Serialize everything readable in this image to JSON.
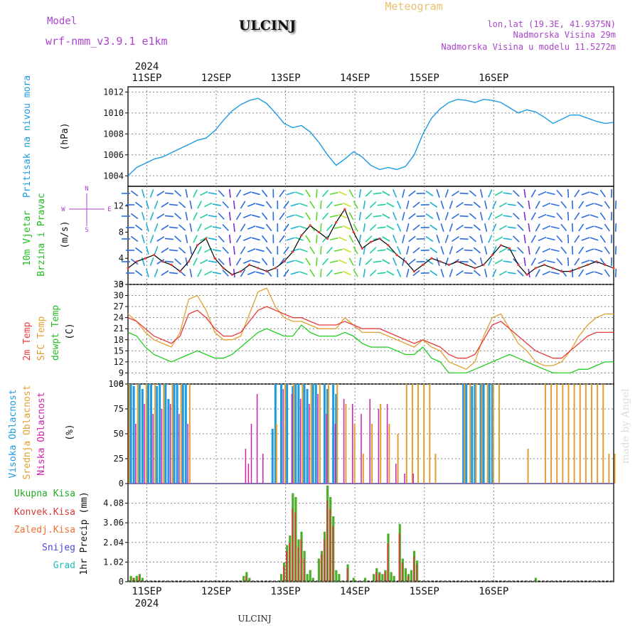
{
  "header": {
    "model_label": "Model",
    "model_name": "wrf-nmm_v3.9.1  e1km",
    "station": "ULCINJ",
    "product": "Meteogram",
    "lonlat": "lon,lat (19.3E, 41.9375N)",
    "elevation": "Nadmorska Visina 29m",
    "model_elevation": "Nadmorska Visina u modelu 11.5272m",
    "footer_station": "ULCINJ",
    "watermark": "made by Angel"
  },
  "colors": {
    "pressure": "#1e9be0",
    "temp2m": "#e83c3c",
    "sfc_temp": "#e0a030",
    "dewpoint": "#22cc22",
    "high_cloud": "#1e9be0",
    "mid_cloud": "#e0a030",
    "low_cloud": "#cc22aa",
    "total_precip": "#4caf2a",
    "conv_precip": "#d83a3a",
    "snow": "#4a4ad8",
    "graupel": "#20c0c0",
    "model_label": "#aa44cc",
    "product_title": "#e8c070"
  },
  "chart_data": [
    {
      "type": "line",
      "panel": "pressure",
      "ylabel_lines": [
        "Pritisak na nivou mora",
        "(hPa)"
      ],
      "ylim": [
        1003,
        1012.5
      ],
      "yticks": [
        1004,
        1006,
        1008,
        1010,
        1012
      ],
      "x_days": [
        "11SEP",
        "12SEP",
        "13SEP",
        "14SEP",
        "15SEP",
        "16SEP"
      ],
      "x_year": "2024",
      "series": [
        {
          "x": [
            0,
            3,
            6,
            9,
            12,
            15,
            18,
            21,
            24,
            27,
            30,
            33,
            36,
            39,
            42,
            45,
            48,
            51,
            54,
            57,
            60,
            63,
            66,
            69,
            72,
            75,
            78,
            81,
            84,
            87,
            90,
            93,
            96,
            99,
            102,
            105,
            108,
            111,
            114,
            117,
            120,
            123,
            126,
            129,
            132,
            135,
            138,
            141,
            144,
            147,
            150,
            153,
            156,
            159,
            162,
            165,
            168
          ],
          "y": [
            1004.0,
            1004.8,
            1005.2,
            1005.6,
            1005.8,
            1006.2,
            1006.6,
            1007.0,
            1007.4,
            1007.6,
            1008.3,
            1009.3,
            1010.2,
            1010.8,
            1011.2,
            1011.4,
            1010.9,
            1010.0,
            1009.0,
            1008.6,
            1008.8,
            1008.2,
            1007.2,
            1006.0,
            1005.0,
            1005.6,
            1006.3,
            1005.8,
            1005.0,
            1004.6,
            1004.8,
            1004.6,
            1004.9,
            1006.0,
            1008.0,
            1009.5,
            1010.4,
            1011.0,
            1011.3,
            1011.2,
            1011.0,
            1011.3,
            1011.2,
            1011.0,
            1010.5,
            1010.0,
            1010.3,
            1010.1,
            1009.6,
            1009.0,
            1009.4,
            1009.8,
            1009.8,
            1009.5,
            1009.2,
            1009.0,
            1009.1
          ]
        }
      ]
    },
    {
      "type": "line",
      "panel": "wind",
      "ylabel_lines": [
        "10m Vjetar",
        "Brzina i Pravac",
        "(m/s)"
      ],
      "ylim": [
        0,
        15
      ],
      "yticks": [
        0,
        4,
        8,
        12
      ],
      "compass": [
        "N",
        "E",
        "W",
        "S"
      ],
      "series": [
        {
          "name": "speed",
          "x": [
            0,
            3,
            6,
            9,
            12,
            15,
            18,
            21,
            24,
            27,
            30,
            33,
            36,
            39,
            42,
            45,
            48,
            51,
            54,
            57,
            60,
            63,
            66,
            69,
            72,
            75,
            78,
            81,
            84,
            87,
            90,
            93,
            96,
            99,
            102,
            105,
            108,
            111,
            114,
            117,
            120,
            123,
            126,
            129,
            132,
            135,
            138,
            141,
            144,
            147,
            150,
            153,
            156,
            159,
            162,
            165,
            168
          ],
          "y": [
            2.5,
            3.5,
            4.0,
            4.5,
            3.5,
            3.0,
            2.0,
            3.5,
            6.0,
            7.0,
            4.0,
            2.5,
            1.5,
            2.0,
            3.0,
            2.5,
            2.0,
            2.5,
            3.5,
            5.0,
            7.5,
            9.0,
            8.0,
            7.0,
            9.5,
            11.5,
            8.0,
            5.5,
            6.5,
            7.0,
            6.0,
            4.5,
            3.5,
            2.0,
            3.0,
            4.0,
            3.5,
            3.0,
            3.5,
            3.0,
            2.5,
            3.0,
            4.5,
            6.0,
            5.5,
            3.0,
            1.5,
            2.5,
            3.0,
            2.5,
            2.0,
            2.0,
            2.5,
            3.0,
            3.5,
            3.0,
            2.5
          ]
        }
      ]
    },
    {
      "type": "line",
      "panel": "temperature",
      "ylabel_lines": [
        "2m Temp",
        "SFC Temp",
        "dewpt Temp",
        "(C)"
      ],
      "ylim": [
        6,
        33
      ],
      "yticks": [
        6,
        9,
        12,
        15,
        18,
        21,
        24,
        27,
        30,
        33
      ],
      "series": [
        {
          "name": "2m Temp",
          "x": [
            0,
            3,
            6,
            9,
            12,
            15,
            18,
            21,
            24,
            27,
            30,
            33,
            36,
            39,
            42,
            45,
            48,
            51,
            54,
            57,
            60,
            63,
            66,
            69,
            72,
            75,
            78,
            81,
            84,
            87,
            90,
            93,
            96,
            99,
            102,
            105,
            108,
            111,
            114,
            117,
            120,
            123,
            126,
            129,
            132,
            135,
            138,
            141,
            144,
            147,
            150,
            153,
            156,
            159,
            162,
            165,
            168
          ],
          "y": [
            24,
            23,
            21,
            19,
            18,
            17,
            19,
            25,
            26,
            24,
            21,
            19,
            19,
            20,
            23,
            26,
            27,
            26,
            25,
            24,
            24,
            23,
            22,
            22,
            22,
            23,
            22,
            21,
            21,
            21,
            20,
            19,
            18,
            17,
            18,
            17,
            16,
            14,
            13,
            13,
            14,
            18,
            22,
            23,
            21,
            19,
            17,
            15,
            14,
            13,
            13,
            15,
            17,
            19,
            20,
            20,
            20
          ]
        },
        {
          "name": "SFC Temp",
          "x": [
            0,
            3,
            6,
            9,
            12,
            15,
            18,
            21,
            24,
            27,
            30,
            33,
            36,
            39,
            42,
            45,
            48,
            51,
            54,
            57,
            60,
            63,
            66,
            69,
            72,
            75,
            78,
            81,
            84,
            87,
            90,
            93,
            96,
            99,
            102,
            105,
            108,
            111,
            114,
            117,
            120,
            123,
            126,
            129,
            132,
            135,
            138,
            141,
            144,
            147,
            150,
            153,
            156,
            159,
            162,
            165,
            168
          ],
          "y": [
            25,
            23,
            20,
            18,
            17,
            16,
            20,
            29,
            30,
            26,
            20,
            18,
            18,
            19,
            25,
            31,
            32,
            27,
            24,
            23,
            23,
            22,
            21,
            21,
            21,
            24,
            22,
            20,
            20,
            20,
            19,
            18,
            17,
            16,
            18,
            16,
            15,
            12,
            11,
            10,
            12,
            19,
            24,
            25,
            21,
            17,
            15,
            12,
            11,
            11,
            12,
            15,
            19,
            22,
            24,
            25,
            25
          ]
        },
        {
          "name": "dewpt Temp",
          "x": [
            0,
            3,
            6,
            9,
            12,
            15,
            18,
            21,
            24,
            27,
            30,
            33,
            36,
            39,
            42,
            45,
            48,
            51,
            54,
            57,
            60,
            63,
            66,
            69,
            72,
            75,
            78,
            81,
            84,
            87,
            90,
            93,
            96,
            99,
            102,
            105,
            108,
            111,
            114,
            117,
            120,
            123,
            126,
            129,
            132,
            135,
            138,
            141,
            144,
            147,
            150,
            153,
            156,
            159,
            162,
            165,
            168
          ],
          "y": [
            20,
            19,
            16,
            14,
            13,
            12,
            13,
            14,
            15,
            14,
            13,
            13,
            14,
            16,
            18,
            20,
            21,
            20,
            19,
            19,
            22,
            20,
            19,
            19,
            19,
            20,
            19,
            17,
            16,
            16,
            16,
            15,
            14,
            14,
            16,
            13,
            12,
            9,
            9,
            9,
            10,
            11,
            12,
            13,
            14,
            13,
            12,
            11,
            10,
            9,
            9,
            9,
            10,
            10,
            11,
            12,
            12
          ]
        }
      ]
    },
    {
      "type": "bar",
      "panel": "cloud",
      "ylabel_lines": [
        "Visoka Oblacnost",
        "Srednja Oblacnost",
        "Niska Oblacnost",
        "(%)"
      ],
      "ylim": [
        0,
        100
      ],
      "yticks": [
        0,
        25,
        50,
        75,
        100
      ],
      "series": [
        {
          "name": "Visoka Oblacnost",
          "x": [
            1,
            2,
            4,
            5,
            7,
            8,
            10,
            11,
            13,
            14,
            16,
            17,
            19,
            20,
            50,
            51,
            53,
            55,
            57,
            58,
            59,
            61,
            62,
            64,
            65,
            68,
            69,
            71,
            72,
            116,
            117,
            119,
            120,
            122,
            123,
            125,
            126
          ],
          "y": [
            100,
            98,
            100,
            95,
            100,
            100,
            98,
            100,
            100,
            85,
            100,
            100,
            100,
            100,
            55,
            100,
            100,
            100,
            98,
            100,
            100,
            100,
            95,
            100,
            100,
            100,
            95,
            100,
            90,
            100,
            100,
            98,
            100,
            100,
            100,
            100,
            100
          ]
        },
        {
          "name": "Srednja Oblacnost",
          "x": [
            0,
            3,
            6,
            9,
            12,
            15,
            18,
            21,
            51,
            54,
            57,
            60,
            63,
            66,
            69,
            72,
            75,
            78,
            81,
            84,
            87,
            90,
            93,
            96,
            98,
            100,
            102,
            104,
            106,
            108,
            110,
            112,
            114,
            116,
            118,
            120,
            122,
            124,
            126,
            128,
            130,
            132,
            134,
            136,
            138,
            140,
            142,
            144,
            146,
            148,
            150,
            152,
            154,
            156,
            158,
            160,
            162,
            164,
            166,
            168
          ],
          "y": [
            100,
            100,
            100,
            100,
            100,
            100,
            100,
            100,
            60,
            100,
            100,
            100,
            100,
            100,
            100,
            100,
            80,
            60,
            30,
            60,
            80,
            60,
            50,
            100,
            100,
            100,
            100,
            100,
            30,
            0,
            0,
            0,
            0,
            100,
            100,
            100,
            100,
            100,
            100,
            100,
            0,
            0,
            0,
            0,
            35,
            0,
            0,
            100,
            100,
            100,
            100,
            100,
            100,
            100,
            100,
            100,
            100,
            100,
            30,
            30
          ]
        },
        {
          "name": "Niska Oblacnost",
          "x": [
            2,
            5,
            8,
            11,
            14,
            17,
            20,
            40,
            41,
            42,
            44,
            46,
            53,
            56,
            59,
            62,
            65,
            68,
            71,
            74,
            77,
            80,
            83,
            86,
            89,
            92,
            95,
            98
          ],
          "y": [
            60,
            80,
            70,
            75,
            80,
            70,
            60,
            35,
            20,
            60,
            90,
            30,
            95,
            90,
            85,
            80,
            90,
            70,
            60,
            85,
            80,
            70,
            85,
            75,
            80,
            20,
            10,
            10
          ]
        }
      ]
    },
    {
      "type": "bar",
      "panel": "precipitation",
      "ylabel_lines": [
        "1hr Precip (mm)"
      ],
      "legend": [
        "Ukupna Kisa",
        "Konvek.Kisa",
        "Zaledj.Kisa",
        "Snijeg",
        "Grad"
      ],
      "ylim": [
        0,
        5.1
      ],
      "yticks": [
        0,
        1.02,
        2.04,
        3.06,
        4.08
      ],
      "series": [
        {
          "name": "Ukupna Kisa",
          "x": [
            1,
            2,
            3,
            4,
            5,
            40,
            41,
            42,
            53,
            54,
            55,
            56,
            57,
            58,
            59,
            60,
            61,
            62,
            63,
            64,
            66,
            67,
            68,
            69,
            70,
            71,
            72,
            73,
            76,
            78,
            82,
            85,
            86,
            87,
            88,
            89,
            90,
            91,
            92,
            94,
            95,
            96,
            97,
            98,
            99,
            100,
            141
          ],
          "y": [
            0.3,
            0.2,
            0.3,
            0.4,
            0.2,
            0.3,
            0.5,
            0.2,
            0.4,
            1.0,
            1.9,
            2.4,
            4.6,
            4.4,
            2.2,
            2.6,
            1.6,
            0.4,
            0.6,
            0.2,
            1.2,
            1.6,
            2.6,
            5.0,
            4.4,
            3.4,
            0.6,
            0.4,
            0.9,
            0.2,
            0.2,
            0.4,
            0.7,
            0.5,
            0.4,
            0.6,
            2.5,
            0.5,
            0.3,
            3.0,
            1.2,
            0.7,
            0.4,
            0.6,
            1.6,
            1.1,
            0.2
          ]
        },
        {
          "name": "Konvek.Kisa",
          "x": [
            2,
            4,
            41,
            54,
            55,
            56,
            57,
            58,
            59,
            60,
            61,
            67,
            68,
            69,
            70,
            71,
            76,
            86,
            87,
            89,
            90,
            94,
            95,
            97,
            99,
            100
          ],
          "y": [
            0.2,
            0.3,
            0.3,
            0.8,
            1.6,
            2.0,
            3.8,
            3.6,
            1.8,
            2.2,
            1.2,
            1.4,
            2.2,
            4.2,
            3.8,
            2.9,
            0.7,
            0.5,
            0.4,
            0.5,
            2.0,
            2.5,
            1.0,
            0.3,
            1.3,
            0.9
          ]
        }
      ]
    }
  ]
}
